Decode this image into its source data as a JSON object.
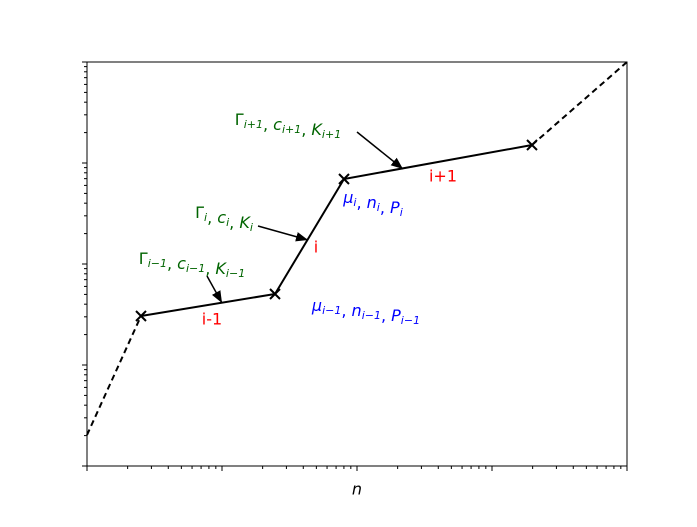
{
  "x_label": "n",
  "green_labels": [
    {
      "terms": [
        {
          "base": "Γ",
          "sub": "i+1"
        },
        {
          "base": "c",
          "sub": "i+1"
        },
        {
          "base": "K",
          "sub": "i+1"
        }
      ],
      "separator": ", "
    },
    {
      "terms": [
        {
          "base": "Γ",
          "sub": "i"
        },
        {
          "base": "c",
          "sub": "i"
        },
        {
          "base": "K",
          "sub": "i"
        }
      ],
      "separator": ", "
    },
    {
      "terms": [
        {
          "base": "Γ",
          "sub": "i−1"
        },
        {
          "base": "c",
          "sub": "i−1"
        },
        {
          "base": "K",
          "sub": "i−1"
        }
      ],
      "separator": ", "
    }
  ],
  "blue_labels": [
    {
      "terms": [
        {
          "base": "μ",
          "sub": "i"
        },
        {
          "base": "n",
          "sub": "i"
        },
        {
          "base": "P",
          "sub": "i"
        }
      ],
      "separator": ", "
    },
    {
      "terms": [
        {
          "base": "μ",
          "sub": "i−1"
        },
        {
          "base": "n",
          "sub": "i−1"
        },
        {
          "base": "P",
          "sub": "i−1"
        }
      ],
      "separator": ", "
    }
  ],
  "segment_labels": [
    "i+1",
    "i",
    "i-1"
  ]
}
